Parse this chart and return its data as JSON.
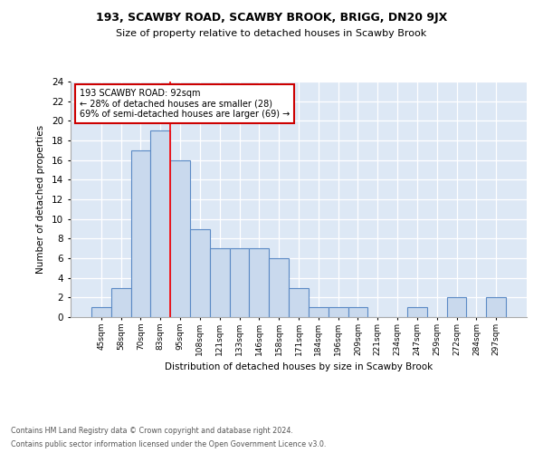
{
  "title1": "193, SCAWBY ROAD, SCAWBY BROOK, BRIGG, DN20 9JX",
  "title2": "Size of property relative to detached houses in Scawby Brook",
  "xlabel": "Distribution of detached houses by size in Scawby Brook",
  "ylabel": "Number of detached properties",
  "categories": [
    "45sqm",
    "58sqm",
    "70sqm",
    "83sqm",
    "95sqm",
    "108sqm",
    "121sqm",
    "133sqm",
    "146sqm",
    "158sqm",
    "171sqm",
    "184sqm",
    "196sqm",
    "209sqm",
    "221sqm",
    "234sqm",
    "247sqm",
    "259sqm",
    "272sqm",
    "284sqm",
    "297sqm"
  ],
  "values": [
    1,
    3,
    17,
    19,
    16,
    9,
    7,
    7,
    7,
    6,
    3,
    1,
    1,
    1,
    0,
    0,
    1,
    0,
    2,
    0,
    2
  ],
  "bar_color": "#c9d9ed",
  "bar_edge_color": "#5b8ac5",
  "red_line_index": 4,
  "annotation_text": "193 SCAWBY ROAD: 92sqm\n← 28% of detached houses are smaller (28)\n69% of semi-detached houses are larger (69) →",
  "annotation_box_color": "#ffffff",
  "annotation_box_edge": "#cc0000",
  "footer1": "Contains HM Land Registry data © Crown copyright and database right 2024.",
  "footer2": "Contains public sector information licensed under the Open Government Licence v3.0.",
  "bg_color": "#dde8f5",
  "ylim": [
    0,
    24
  ],
  "yticks": [
    0,
    2,
    4,
    6,
    8,
    10,
    12,
    14,
    16,
    18,
    20,
    22,
    24
  ]
}
